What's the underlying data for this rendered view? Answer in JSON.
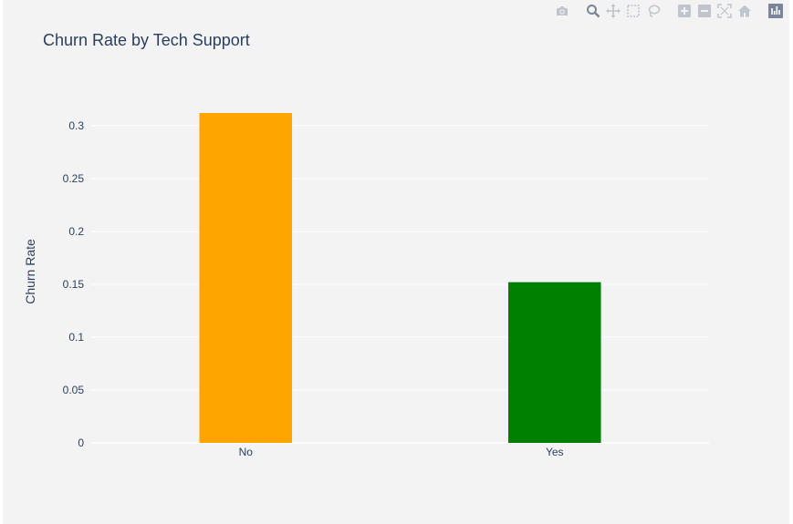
{
  "toolbar": {
    "buttons": [
      {
        "icon": "camera-icon"
      },
      {
        "icon": "zoom-icon"
      },
      {
        "icon": "pan-icon"
      },
      {
        "icon": "box-select-icon"
      },
      {
        "icon": "lasso-icon"
      },
      {
        "icon": "zoom-in-icon"
      },
      {
        "icon": "zoom-out-icon"
      },
      {
        "icon": "autoscale-icon"
      },
      {
        "icon": "reset-axes-icon"
      },
      {
        "icon": "plotly-logo-icon"
      }
    ],
    "icon_color": "#c0c4cc",
    "active_color": "#7a8599"
  },
  "chart_data": {
    "type": "bar",
    "title": "Churn Rate by Tech Support",
    "xlabel": "",
    "ylabel": "Churn Rate",
    "categories": [
      "No",
      "Yes"
    ],
    "values": [
      0.312,
      0.152
    ],
    "colors": [
      "#FFA500",
      "#008000"
    ],
    "ylim": [
      0,
      0.3284
    ],
    "yticks": [
      0,
      0.05,
      0.1,
      0.15,
      0.2,
      0.25,
      0.3
    ],
    "ytick_labels": [
      "0",
      "0.05",
      "0.1",
      "0.15",
      "0.2",
      "0.25",
      "0.3"
    ],
    "grid": true,
    "background": "#f3f3f3",
    "gridcolor": "#ffffff"
  }
}
